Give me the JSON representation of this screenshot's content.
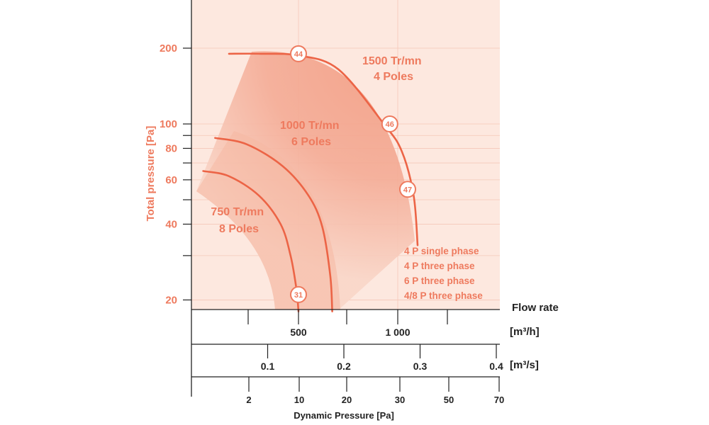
{
  "chart_data": {
    "type": "line",
    "ylabel": "Total pressure [Pa]",
    "yscale": "log",
    "yticks": [
      20,
      40,
      60,
      80,
      100,
      200
    ],
    "yminor": [
      30,
      50,
      70,
      90
    ],
    "ylim": [
      18,
      300
    ],
    "x_axes": [
      {
        "label": "Flow rate",
        "unit": "[m³/h]",
        "ticks": [
          "500",
          "1 000"
        ],
        "tick_values": [
          500,
          1000
        ]
      },
      {
        "label": "",
        "unit": "[m³/s]",
        "ticks": [
          "0.1",
          "0.2",
          "0.3",
          "0.4"
        ],
        "tick_values": [
          0.1,
          0.2,
          0.3,
          0.4
        ]
      },
      {
        "label": "Dynamic Pressure [Pa]",
        "unit": "",
        "ticks": [
          "2",
          "10",
          "20",
          "30",
          "50",
          "70"
        ],
        "tick_values": [
          2,
          10,
          20,
          30,
          50,
          70
        ]
      }
    ],
    "series": [
      {
        "name": "1500 Tr/mn 4 Poles",
        "label_lines": [
          "1500 Tr/mn",
          "4 Poles"
        ],
        "x": [
          150,
          310,
          500,
          700,
          930,
          1020,
          1080,
          1100
        ],
        "y": [
          190,
          190,
          187,
          165,
          100,
          78,
          52,
          33
        ]
      },
      {
        "name": "1000 Tr/mn 6 Poles",
        "label_lines": [
          "1000 Tr/mn",
          "6 Poles"
        ],
        "x": [
          80,
          240,
          420,
          550,
          620,
          660,
          670
        ],
        "y": [
          88,
          83,
          68,
          52,
          39,
          25,
          18
        ]
      },
      {
        "name": "750 Tr/mn 8 Poles",
        "label_lines": [
          "750 Tr/mn",
          "8 Poles"
        ],
        "x": [
          20,
          150,
          300,
          410,
          460,
          490,
          500
        ],
        "y": [
          65,
          62,
          52,
          40,
          30,
          22,
          18
        ]
      }
    ],
    "markers": [
      {
        "label": "44",
        "x": 500,
        "y": 190
      },
      {
        "label": "46",
        "x": 960,
        "y": 100
      },
      {
        "label": "47",
        "x": 1050,
        "y": 55
      },
      {
        "label": "31",
        "x": 500,
        "y": 21
      }
    ],
    "legend": [
      "4 P single phase",
      "4 P three phase",
      "6 P three phase",
      "4/8 P three phase"
    ],
    "legend_position": "bottom-right",
    "grid": true
  },
  "colors": {
    "accent": "#ee7a5e",
    "curve": "#ec6446",
    "axis": "#222222"
  }
}
